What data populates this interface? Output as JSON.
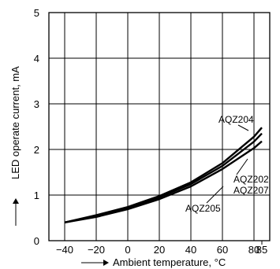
{
  "chart_data": {
    "type": "line",
    "title": "",
    "xlabel": "Ambient temperature, °C",
    "ylabel": "LED operate current, mA",
    "xlim": [
      -50,
      90
    ],
    "ylim": [
      0,
      5
    ],
    "x_ticks": [
      -40,
      -20,
      0,
      20,
      40,
      60,
      80,
      85
    ],
    "y_ticks": [
      0,
      1,
      2,
      3,
      4,
      5
    ],
    "grid": true,
    "series": [
      {
        "name": "AQZ204",
        "x": [
          -40,
          -20,
          0,
          20,
          40,
          60,
          80,
          85
        ],
        "y": [
          0.4,
          0.56,
          0.74,
          0.98,
          1.28,
          1.7,
          2.28,
          2.48
        ]
      },
      {
        "name": "AQZ202 AQZ207",
        "x": [
          -40,
          -20,
          0,
          20,
          40,
          60,
          80,
          85
        ],
        "y": [
          0.4,
          0.54,
          0.72,
          0.95,
          1.24,
          1.64,
          2.17,
          2.35
        ]
      },
      {
        "name": "AQZ205",
        "x": [
          -40,
          -20,
          0,
          20,
          40,
          60,
          80,
          85
        ],
        "y": [
          0.4,
          0.52,
          0.69,
          0.91,
          1.19,
          1.57,
          2.03,
          2.18
        ]
      }
    ],
    "labels": {
      "aqz204": "AQZ204",
      "aqz202": "AQZ202",
      "aqz207": "AQZ207",
      "aqz205": "AQZ205"
    }
  }
}
